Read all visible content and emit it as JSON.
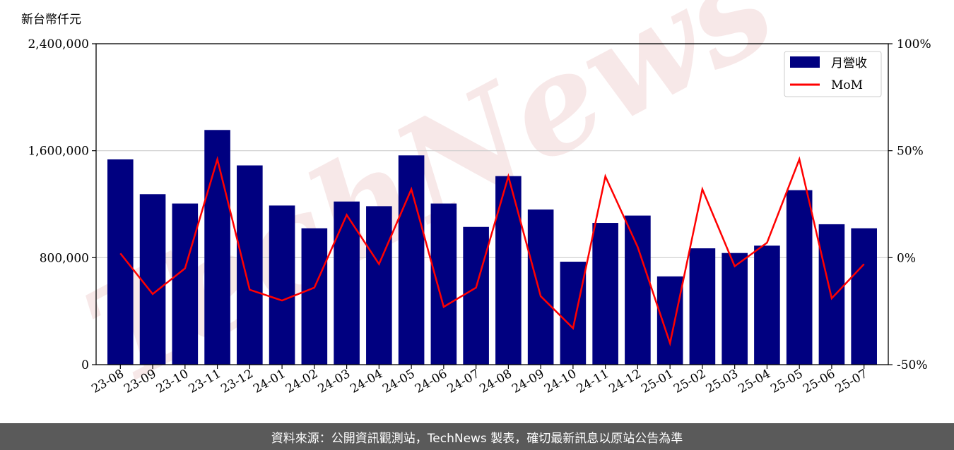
{
  "footer": {
    "text": "資料來源：公開資訊觀測站，TechNews 製表，確切最新訊息以原站公告為準"
  },
  "watermark": "TechNews",
  "colors": {
    "bar": "#000080",
    "line": "#ff0000",
    "grid": "#cccccc",
    "footer_bg": "#5a5a5a"
  },
  "chart_data": {
    "type": "bar",
    "y_unit_label": "新台幣仟元",
    "categories": [
      "23-08",
      "23-09",
      "23-10",
      "23-11",
      "23-12",
      "24-01",
      "24-02",
      "24-03",
      "24-04",
      "24-05",
      "24-06",
      "24-07",
      "24-08",
      "24-09",
      "24-10",
      "24-11",
      "24-12",
      "25-01",
      "25-02",
      "25-03",
      "25-04",
      "25-05",
      "25-06",
      "25-07"
    ],
    "series": [
      {
        "name": "月營收",
        "type": "bar",
        "axis": "left",
        "values": [
          1535000,
          1275000,
          1205000,
          1755000,
          1490000,
          1190000,
          1020000,
          1220000,
          1185000,
          1565000,
          1205000,
          1030000,
          1410000,
          1160000,
          770000,
          1060000,
          1115000,
          660000,
          870000,
          835000,
          890000,
          1305000,
          1050000,
          1020000
        ]
      },
      {
        "name": "MoM",
        "type": "line",
        "axis": "right",
        "values": [
          2,
          -17,
          -5,
          46,
          -15,
          -20,
          -14,
          20,
          -3,
          32,
          -23,
          -14,
          38,
          -18,
          -33,
          38,
          5,
          -40,
          32,
          -4,
          7,
          46,
          -19,
          -3
        ]
      }
    ],
    "ylim_left": [
      0,
      2400000
    ],
    "yticks_left": [
      0,
      800000,
      1600000,
      2400000
    ],
    "ytick_labels_left": [
      "0",
      "800,000",
      "1,600,000",
      "2,400,000"
    ],
    "ylim_right": [
      -50,
      100
    ],
    "yticks_right": [
      -50,
      0,
      50,
      100
    ],
    "ytick_labels_right": [
      "-50%",
      "0%",
      "50%",
      "100%"
    ],
    "grid": "horizontal",
    "legend_position": "top-right"
  }
}
